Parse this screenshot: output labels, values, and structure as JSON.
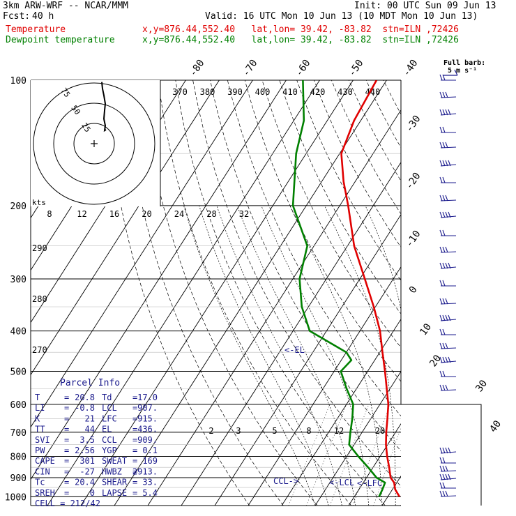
{
  "header": {
    "line1_left": "3km ARW-WRF -- NCAR/MMM",
    "line1_right": "Init: 00 UTC Sun 09 Jun 13",
    "fcst_label": "Fcst:",
    "fcst_value": "40 h",
    "valid": "Valid: 16 UTC Mon 10 Jun 13 (10 MDT Mon 10 Jun 13)",
    "series": [
      {
        "name": "Temperature",
        "info": "x,y=876.44,552.40   lat,lon= 39.42, -83.82  stn=ILN ,72426",
        "color": "#e00000"
      },
      {
        "name": "Dewpoint temperature",
        "info": "x,y=876.44,552.40   lat,lon= 39.42, -83.82  stn=ILN ,72426",
        "color": "#008000"
      }
    ]
  },
  "barb_legend": {
    "title": "Full barb:",
    "value": "5 m s⁻¹"
  },
  "chart_data": {
    "type": "line",
    "chart_kind": "skew-T log-p sounding",
    "y_axis": {
      "scale": "log",
      "pressure_levels": [
        100,
        200,
        300,
        400,
        500,
        600,
        700,
        800,
        900,
        1000
      ]
    },
    "temperature_ticks": [
      -80,
      -70,
      -60,
      -50,
      -40,
      -30,
      -20,
      -10,
      0,
      10,
      20,
      30,
      40
    ],
    "theta_e_labels": [
      370,
      380,
      390,
      400,
      410,
      420,
      430,
      440
    ],
    "mixing_ratio_labels": [
      2,
      3,
      5,
      8,
      12,
      20
    ],
    "dry_adiabat_labels": [
      290,
      280,
      270
    ],
    "series": [
      {
        "name": "Temperature",
        "color": "#e00000",
        "points": [
          [
            1000,
            23.5
          ],
          [
            960,
            20.8
          ],
          [
            925,
            19.2
          ],
          [
            900,
            17.2
          ],
          [
            850,
            14.8
          ],
          [
            800,
            12.1
          ],
          [
            750,
            9.5
          ],
          [
            700,
            7.2
          ],
          [
            650,
            5.0
          ],
          [
            600,
            2.5
          ],
          [
            550,
            -1.0
          ],
          [
            500,
            -4.8
          ],
          [
            450,
            -9.2
          ],
          [
            400,
            -14.0
          ],
          [
            350,
            -20.5
          ],
          [
            300,
            -28.5
          ],
          [
            250,
            -38.0
          ],
          [
            200,
            -47.5
          ],
          [
            175,
            -53.5
          ],
          [
            150,
            -59.5
          ],
          [
            125,
            -62.0
          ],
          [
            100,
            -63.0
          ]
        ]
      },
      {
        "name": "Dewpoint temperature",
        "color": "#008000",
        "points": [
          [
            1000,
            17.4
          ],
          [
            960,
            17.0
          ],
          [
            925,
            16.5
          ],
          [
            900,
            13.0
          ],
          [
            850,
            8.5
          ],
          [
            800,
            3.5
          ],
          [
            750,
            -1.5
          ],
          [
            700,
            -3.5
          ],
          [
            650,
            -5.5
          ],
          [
            600,
            -8.0
          ],
          [
            550,
            -13.0
          ],
          [
            500,
            -18.0
          ],
          [
            470,
            -17.0
          ],
          [
            450,
            -20.0
          ],
          [
            400,
            -35.0
          ],
          [
            350,
            -42.0
          ],
          [
            300,
            -48.0
          ],
          [
            250,
            -52.0
          ],
          [
            200,
            -64.0
          ],
          [
            150,
            -73.0
          ],
          [
            125,
            -77.0
          ],
          [
            100,
            -85.0
          ]
        ]
      }
    ],
    "annotations": [
      "<-EL",
      "CCL->",
      "<-LCL",
      "<-LFC"
    ]
  },
  "hodograph": {
    "ring_labels": [
      "25",
      "50",
      "75"
    ],
    "scale_label": "kts",
    "ticks": [
      "8",
      "12",
      "16",
      "20",
      "24",
      "28",
      "32"
    ],
    "points": [
      [
        -3,
        5
      ],
      [
        -5,
        4
      ],
      [
        -4,
        10
      ],
      [
        -6,
        18
      ],
      [
        -5,
        28
      ],
      [
        -4,
        36
      ],
      [
        -6,
        46
      ],
      [
        -8,
        54
      ],
      [
        -9,
        62
      ]
    ]
  },
  "parcel_info": {
    "title": "Parcel Info",
    "rows": [
      {
        "l1": "T",
        "v1": "20.8",
        "l2": "Td",
        "v2": "17.0"
      },
      {
        "l1": "LI",
        "v1": "-0.8",
        "l2": "LCL",
        "v2": "907."
      },
      {
        "l1": "K",
        "v1": "21",
        "l2": "LFC",
        "v2": "915."
      },
      {
        "l1": "TT",
        "v1": "44",
        "l2": "EL",
        "v2": "436."
      },
      {
        "l1": "SVI",
        "v1": "3.5",
        "l2": "CCL",
        "v2": "909."
      },
      {
        "l1": "PW",
        "v1": "2.56",
        "l2": "YGP",
        "v2": "0.1"
      },
      {
        "l1": "CAPE",
        "v1": "301",
        "l2": "SWEAT",
        "v2": "169"
      },
      {
        "l1": "CIN",
        "v1": "-27",
        "l2": "HWBZ",
        "v2": "2913."
      },
      {
        "l1": "Tc",
        "v1": "20.4",
        "l2": "SHEAR",
        "v2": "33."
      },
      {
        "l1": "SREH",
        "v1": "0",
        "l2": "LAPSE",
        "v2": "5.4"
      }
    ],
    "cell": "CELL = 212/42"
  }
}
